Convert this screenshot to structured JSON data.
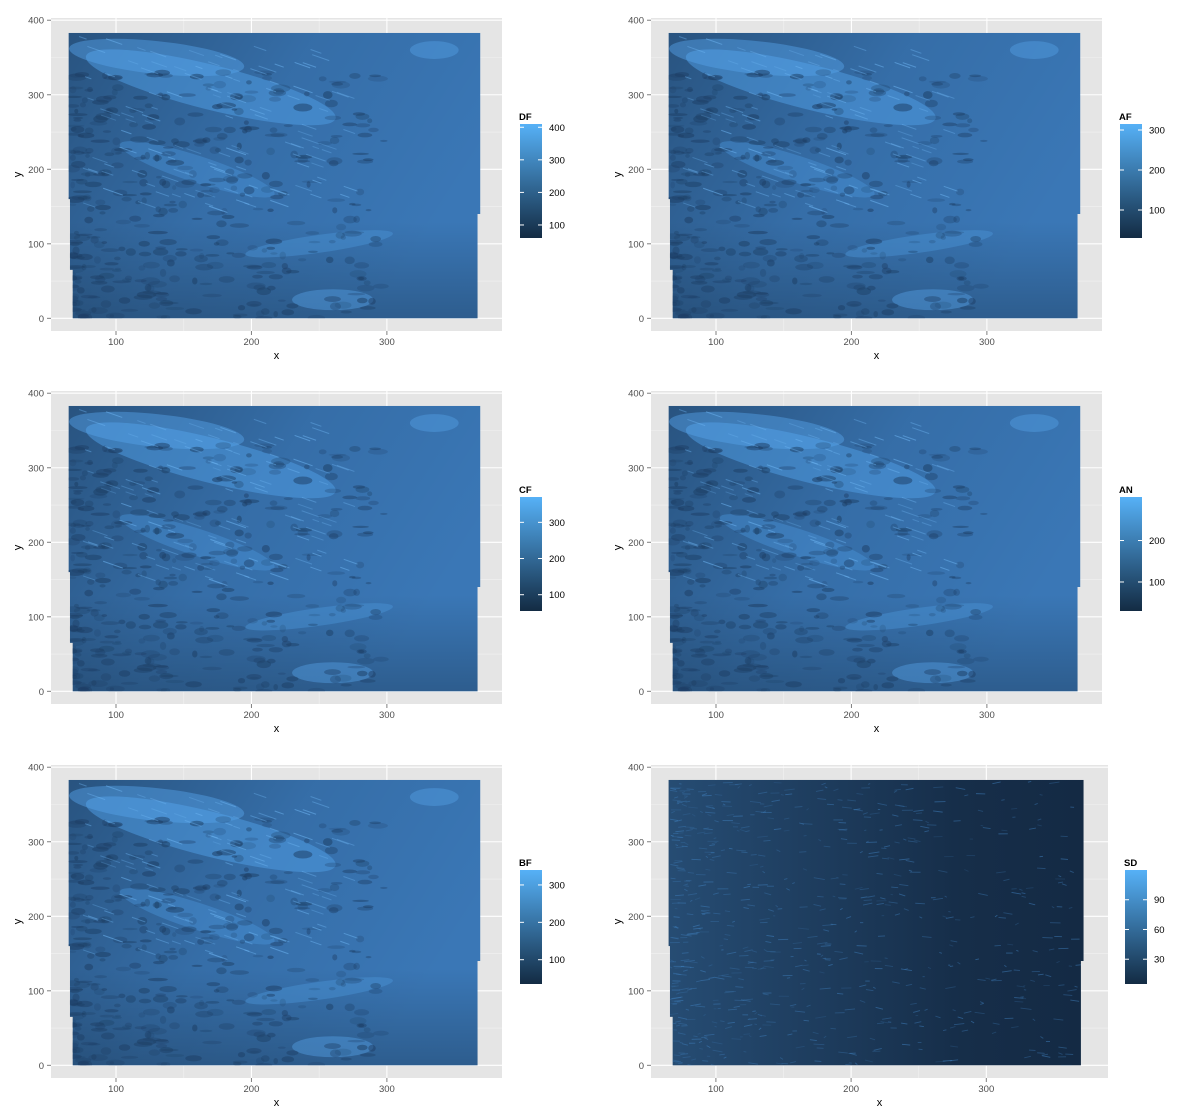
{
  "chart_data": [
    {
      "type": "heatmap",
      "title": "",
      "xlabel": "x",
      "ylabel": "y",
      "xlim": [
        52,
        385
      ],
      "ylim": [
        -17,
        403
      ],
      "xticks": [
        100,
        200,
        300
      ],
      "yticks": [
        0,
        100,
        200,
        300,
        400
      ],
      "grid": true,
      "legend": {
        "title": "DF",
        "position": "right",
        "range": [
          60,
          410
        ],
        "breaks": [
          100,
          200,
          300,
          400
        ]
      },
      "colors": {
        "low": "#132b43",
        "high": "#56b1f7",
        "field": "#3a77b6"
      },
      "field_style": "clouds"
    },
    {
      "type": "heatmap",
      "title": "",
      "xlabel": "x",
      "ylabel": "y",
      "xlim": [
        52,
        385
      ],
      "ylim": [
        -17,
        403
      ],
      "xticks": [
        100,
        200,
        300
      ],
      "yticks": [
        0,
        100,
        200,
        300,
        400
      ],
      "grid": true,
      "legend": {
        "title": "AF",
        "position": "right",
        "range": [
          30,
          315
        ],
        "breaks": [
          100,
          200,
          300
        ]
      },
      "colors": {
        "low": "#132b43",
        "high": "#56b1f7",
        "field": "#3a77b6"
      },
      "field_style": "clouds"
    },
    {
      "type": "heatmap",
      "title": "",
      "xlabel": "x",
      "ylabel": "y",
      "xlim": [
        52,
        385
      ],
      "ylim": [
        -17,
        403
      ],
      "xticks": [
        100,
        200,
        300
      ],
      "yticks": [
        0,
        100,
        200,
        300,
        400
      ],
      "grid": true,
      "legend": {
        "title": "CF",
        "position": "right",
        "range": [
          55,
          370
        ],
        "breaks": [
          100,
          200,
          300
        ]
      },
      "colors": {
        "low": "#132b43",
        "high": "#56b1f7",
        "field": "#3a77b6"
      },
      "field_style": "clouds"
    },
    {
      "type": "heatmap",
      "title": "",
      "xlabel": "x",
      "ylabel": "y",
      "xlim": [
        52,
        385
      ],
      "ylim": [
        -17,
        403
      ],
      "xticks": [
        100,
        200,
        300
      ],
      "yticks": [
        0,
        100,
        200,
        300,
        400
      ],
      "grid": true,
      "legend": {
        "title": "AN",
        "position": "right",
        "range": [
          30,
          305
        ],
        "breaks": [
          100,
          200
        ]
      },
      "colors": {
        "low": "#132b43",
        "high": "#56b1f7",
        "field": "#3a77b6"
      },
      "field_style": "clouds"
    },
    {
      "type": "heatmap",
      "title": "",
      "xlabel": "x",
      "ylabel": "y",
      "xlim": [
        52,
        385
      ],
      "ylim": [
        -17,
        403
      ],
      "xticks": [
        100,
        200,
        300
      ],
      "yticks": [
        0,
        100,
        200,
        300,
        400
      ],
      "grid": true,
      "legend": {
        "title": "BF",
        "position": "right",
        "range": [
          35,
          340
        ],
        "breaks": [
          100,
          200,
          300
        ]
      },
      "colors": {
        "low": "#132b43",
        "high": "#56b1f7",
        "field": "#3a77b6"
      },
      "field_style": "clouds"
    },
    {
      "type": "heatmap",
      "title": "",
      "xlabel": "x",
      "ylabel": "y",
      "xlim": [
        52,
        390
      ],
      "ylim": [
        -17,
        403
      ],
      "xticks": [
        100,
        200,
        300
      ],
      "yticks": [
        0,
        100,
        200,
        300,
        400
      ],
      "grid": true,
      "legend": {
        "title": "SD",
        "position": "right",
        "range": [
          5,
          120
        ],
        "breaks": [
          30,
          60,
          90
        ]
      },
      "colors": {
        "low": "#132b43",
        "high": "#56b1f7",
        "field": "#142a44"
      },
      "field_style": "deviation"
    }
  ]
}
